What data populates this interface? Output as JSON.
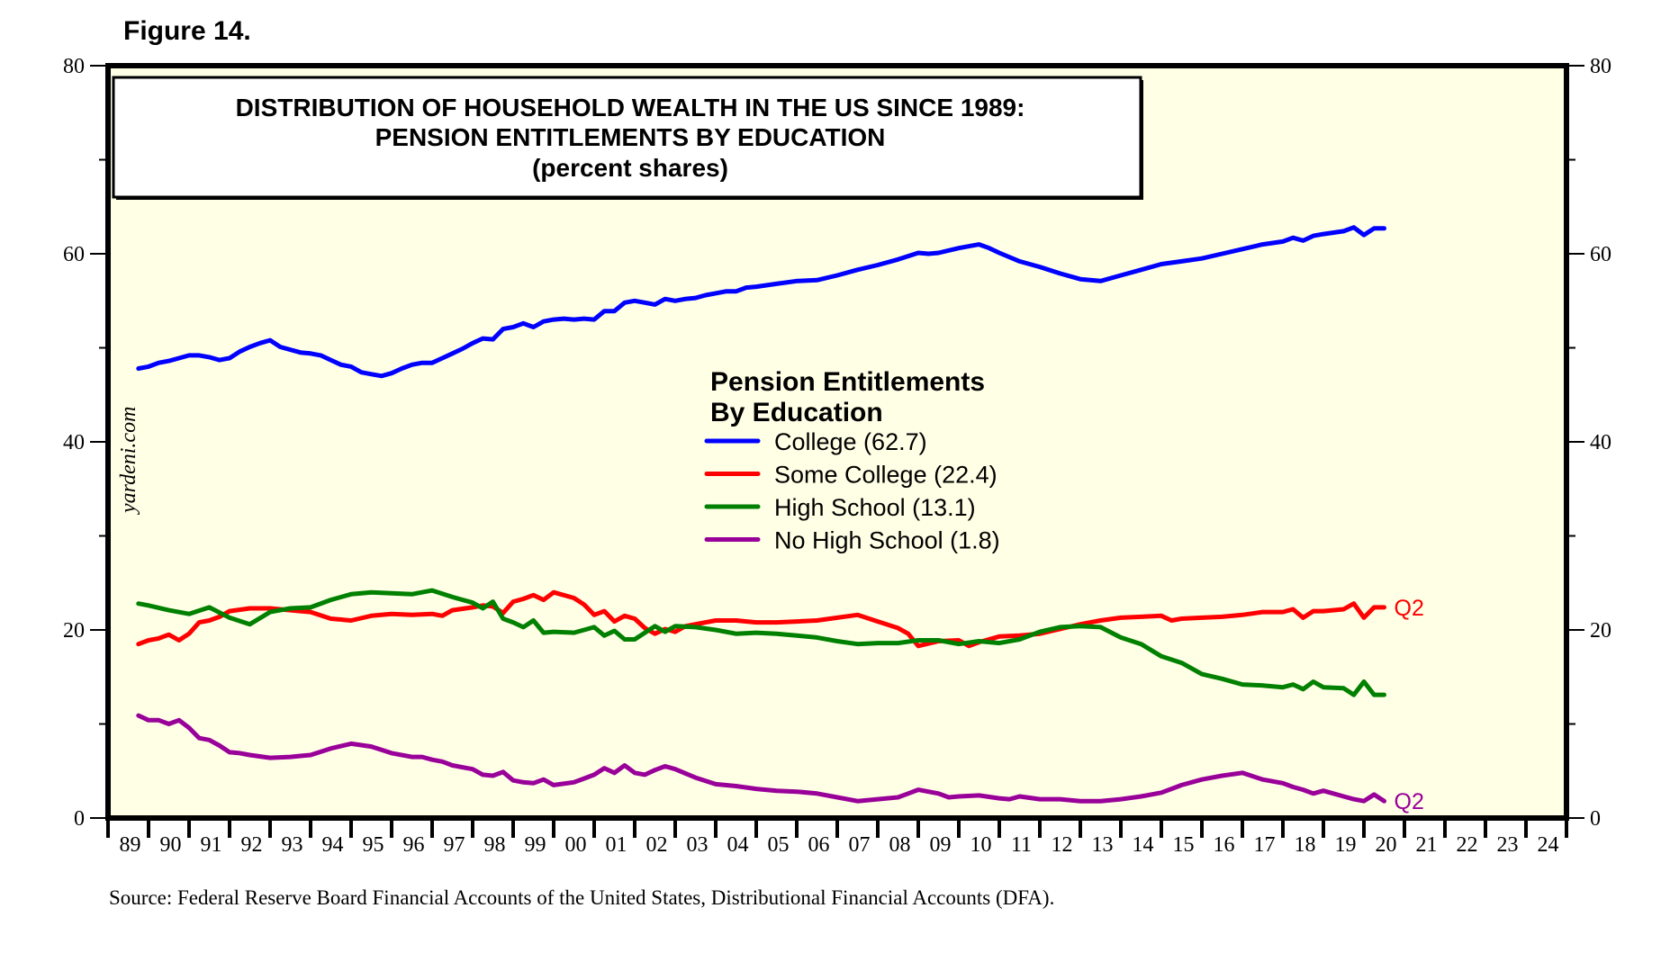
{
  "figure_label": "Figure 14.",
  "source": "Source: Federal Reserve Board Financial Accounts of the United States, Distributional Financial Accounts (DFA).",
  "watermark": "yardeni.com",
  "chart_data": {
    "type": "line",
    "title": [
      "DISTRIBUTION OF HOUSEHOLD WEALTH IN THE US SINCE 1989:",
      "PENSION ENTITLEMENTS BY EDUCATION",
      "(percent shares)"
    ],
    "xlabel": "",
    "ylabel": "",
    "xlim": [
      1989,
      2025
    ],
    "ylim": [
      0,
      80
    ],
    "yticks": [
      0,
      20,
      40,
      60,
      80
    ],
    "ytick_labels": [
      "0",
      "20",
      "40",
      "60",
      "80"
    ],
    "xtick_labels": [
      "89",
      "90",
      "91",
      "92",
      "93",
      "94",
      "95",
      "96",
      "97",
      "98",
      "99",
      "00",
      "01",
      "02",
      "03",
      "04",
      "05",
      "06",
      "07",
      "08",
      "09",
      "10",
      "11",
      "12",
      "13",
      "14",
      "15",
      "16",
      "17",
      "18",
      "19",
      "20",
      "21",
      "22",
      "23",
      "24"
    ],
    "grid": false,
    "background": "#ffffe6",
    "legend": {
      "title": [
        "Pension Entitlements",
        "By Education"
      ],
      "placement": "center"
    },
    "end_labels": [
      {
        "series": "Some College",
        "text": "Q2",
        "color": "#ff0000"
      },
      {
        "series": "No High School",
        "text": "Q2",
        "color": "#990099"
      }
    ],
    "series": [
      {
        "name": "College",
        "legend_label": "College (62.7)",
        "color": "#0000ff",
        "x": [
          1989.75,
          1990.0,
          1990.25,
          1990.5,
          1990.75,
          1991.0,
          1991.25,
          1991.5,
          1991.75,
          1992.0,
          1992.25,
          1992.5,
          1992.75,
          1993.0,
          1993.25,
          1993.5,
          1993.75,
          1994.0,
          1994.25,
          1994.5,
          1994.75,
          1995.0,
          1995.25,
          1995.5,
          1995.75,
          1996.0,
          1996.25,
          1996.5,
          1996.75,
          1997.0,
          1997.25,
          1997.5,
          1997.75,
          1998.0,
          1998.25,
          1998.5,
          1998.75,
          1999.0,
          1999.25,
          1999.5,
          1999.75,
          2000.0,
          2000.25,
          2000.5,
          2000.75,
          2001.0,
          2001.25,
          2001.5,
          2001.75,
          2002.0,
          2002.25,
          2002.5,
          2002.75,
          2003.0,
          2003.25,
          2003.5,
          2003.75,
          2004.0,
          2004.25,
          2004.5,
          2004.75,
          2005.0,
          2005.5,
          2006.0,
          2006.5,
          2007.0,
          2007.5,
          2008.0,
          2008.5,
          2009.0,
          2009.25,
          2009.5,
          2010.0,
          2010.5,
          2010.75,
          2011.0,
          2011.5,
          2012.0,
          2012.5,
          2013.0,
          2013.5,
          2014.0,
          2014.5,
          2015.0,
          2015.5,
          2016.0,
          2016.5,
          2017.0,
          2017.5,
          2018.0,
          2018.25,
          2018.5,
          2018.75,
          2019.0,
          2019.5,
          2019.75,
          2020.0,
          2020.25,
          2020.5
        ],
        "values": [
          47.8,
          48.0,
          48.4,
          48.6,
          48.9,
          49.2,
          49.2,
          49.0,
          48.7,
          48.9,
          49.6,
          50.1,
          50.5,
          50.8,
          50.1,
          49.8,
          49.5,
          49.4,
          49.2,
          48.7,
          48.2,
          48.0,
          47.4,
          47.2,
          47.0,
          47.3,
          47.8,
          48.2,
          48.4,
          48.4,
          48.9,
          49.4,
          49.9,
          50.5,
          51.0,
          50.9,
          52.0,
          52.2,
          52.6,
          52.2,
          52.8,
          53.0,
          53.1,
          53.0,
          53.1,
          53.0,
          53.9,
          53.9,
          54.8,
          55.0,
          54.8,
          54.6,
          55.2,
          55.0,
          55.2,
          55.3,
          55.6,
          55.8,
          56.0,
          56.0,
          56.4,
          56.5,
          56.8,
          57.1,
          57.2,
          57.7,
          58.3,
          58.8,
          59.4,
          60.1,
          60.0,
          60.1,
          60.6,
          61.0,
          60.6,
          60.1,
          59.2,
          58.6,
          57.9,
          57.3,
          57.1,
          57.7,
          58.3,
          58.9,
          59.2,
          59.5,
          60.0,
          60.5,
          61.0,
          61.3,
          61.7,
          61.4,
          61.9,
          62.1,
          62.4,
          62.8,
          62.0,
          62.7,
          62.7
        ],
        "end": 62.7
      },
      {
        "name": "Some College",
        "legend_label": "Some College (22.4)",
        "color": "#ff0000",
        "x": [
          1989.75,
          1990.0,
          1990.25,
          1990.5,
          1990.75,
          1991.0,
          1991.25,
          1991.5,
          1991.75,
          1992.0,
          1992.5,
          1993.0,
          1993.5,
          1994.0,
          1994.5,
          1995.0,
          1995.5,
          1996.0,
          1996.5,
          1997.0,
          1997.25,
          1997.5,
          1998.0,
          1998.25,
          1998.5,
          1998.75,
          1999.0,
          1999.25,
          1999.5,
          1999.75,
          2000.0,
          2000.5,
          2000.75,
          2001.0,
          2001.25,
          2001.5,
          2001.75,
          2002.0,
          2002.25,
          2002.5,
          2002.75,
          2003.0,
          2003.25,
          2003.5,
          2004.0,
          2004.5,
          2005.0,
          2005.5,
          2006.0,
          2006.5,
          2007.0,
          2007.5,
          2008.0,
          2008.5,
          2008.75,
          2009.0,
          2009.5,
          2010.0,
          2010.25,
          2010.5,
          2011.0,
          2011.5,
          2012.0,
          2012.5,
          2013.0,
          2013.5,
          2014.0,
          2014.5,
          2015.0,
          2015.25,
          2015.5,
          2016.0,
          2016.5,
          2017.0,
          2017.5,
          2018.0,
          2018.25,
          2018.5,
          2018.75,
          2019.0,
          2019.5,
          2019.75,
          2020.0,
          2020.25,
          2020.5
        ],
        "values": [
          18.5,
          18.9,
          19.1,
          19.5,
          18.9,
          19.6,
          20.8,
          21.0,
          21.4,
          22.0,
          22.3,
          22.3,
          22.1,
          21.9,
          21.2,
          21.0,
          21.5,
          21.7,
          21.6,
          21.7,
          21.5,
          22.1,
          22.4,
          22.6,
          22.5,
          21.8,
          23.0,
          23.3,
          23.7,
          23.2,
          24.0,
          23.4,
          22.7,
          21.6,
          22.0,
          20.9,
          21.5,
          21.2,
          20.2,
          19.6,
          20.1,
          19.8,
          20.4,
          20.6,
          21.0,
          21.0,
          20.8,
          20.8,
          20.9,
          21.0,
          21.3,
          21.6,
          20.9,
          20.2,
          19.6,
          18.3,
          18.8,
          18.9,
          18.3,
          18.7,
          19.3,
          19.4,
          19.6,
          20.1,
          20.6,
          21.0,
          21.3,
          21.4,
          21.5,
          21.0,
          21.2,
          21.3,
          21.4,
          21.6,
          21.9,
          21.9,
          22.2,
          21.3,
          22.0,
          22.0,
          22.2,
          22.8,
          21.3,
          22.4,
          22.4
        ],
        "end": 22.4
      },
      {
        "name": "High School",
        "legend_label": "High School (13.1)",
        "color": "#008000",
        "x": [
          1989.75,
          1990.0,
          1990.5,
          1991.0,
          1991.5,
          1992.0,
          1992.5,
          1993.0,
          1993.5,
          1994.0,
          1994.5,
          1995.0,
          1995.5,
          1996.0,
          1996.5,
          1997.0,
          1997.5,
          1998.0,
          1998.25,
          1998.5,
          1998.75,
          1999.0,
          1999.25,
          1999.5,
          1999.75,
          2000.0,
          2000.5,
          2001.0,
          2001.25,
          2001.5,
          2001.75,
          2002.0,
          2002.5,
          2002.75,
          2003.0,
          2003.5,
          2004.0,
          2004.5,
          2005.0,
          2005.5,
          2006.0,
          2006.5,
          2007.0,
          2007.5,
          2008.0,
          2008.5,
          2009.0,
          2009.5,
          2010.0,
          2010.5,
          2011.0,
          2011.5,
          2012.0,
          2012.5,
          2013.0,
          2013.5,
          2014.0,
          2014.5,
          2015.0,
          2015.5,
          2016.0,
          2016.5,
          2017.0,
          2017.5,
          2018.0,
          2018.25,
          2018.5,
          2018.75,
          2019.0,
          2019.5,
          2019.75,
          2020.0,
          2020.25,
          2020.5
        ],
        "values": [
          22.8,
          22.6,
          22.1,
          21.7,
          22.4,
          21.3,
          20.6,
          21.9,
          22.3,
          22.4,
          23.2,
          23.8,
          24.0,
          23.9,
          23.8,
          24.2,
          23.5,
          22.9,
          22.3,
          23.0,
          21.2,
          20.8,
          20.3,
          21.0,
          19.7,
          19.8,
          19.7,
          20.3,
          19.4,
          19.9,
          19.0,
          19.0,
          20.4,
          19.8,
          20.4,
          20.3,
          20.0,
          19.6,
          19.7,
          19.6,
          19.4,
          19.2,
          18.8,
          18.5,
          18.6,
          18.6,
          18.9,
          18.9,
          18.5,
          18.8,
          18.6,
          19.0,
          19.8,
          20.3,
          20.4,
          20.3,
          19.2,
          18.5,
          17.2,
          16.5,
          15.3,
          14.8,
          14.2,
          14.1,
          13.9,
          14.2,
          13.7,
          14.5,
          13.9,
          13.8,
          13.1,
          14.5,
          13.1,
          13.1
        ],
        "end": 13.1
      },
      {
        "name": "No High School",
        "legend_label": "No High School (1.8)",
        "color": "#990099",
        "x": [
          1989.75,
          1990.0,
          1990.25,
          1990.5,
          1990.75,
          1991.0,
          1991.25,
          1991.5,
          1991.75,
          1992.0,
          1992.25,
          1992.5,
          1993.0,
          1993.5,
          1993.75,
          1994.0,
          1994.5,
          1995.0,
          1995.5,
          1996.0,
          1996.5,
          1996.75,
          1997.0,
          1997.25,
          1997.5,
          1998.0,
          1998.25,
          1998.5,
          1998.75,
          1999.0,
          1999.25,
          1999.5,
          1999.75,
          2000.0,
          2000.5,
          2000.75,
          2001.0,
          2001.25,
          2001.5,
          2001.75,
          2002.0,
          2002.25,
          2002.5,
          2002.75,
          2003.0,
          2003.5,
          2004.0,
          2004.5,
          2005.0,
          2005.5,
          2006.0,
          2006.5,
          2007.0,
          2007.5,
          2008.0,
          2008.5,
          2008.75,
          2009.0,
          2009.5,
          2009.75,
          2010.0,
          2010.5,
          2011.0,
          2011.25,
          2011.5,
          2012.0,
          2012.5,
          2013.0,
          2013.5,
          2014.0,
          2014.5,
          2015.0,
          2015.25,
          2015.5,
          2016.0,
          2016.5,
          2017.0,
          2017.5,
          2018.0,
          2018.25,
          2018.5,
          2018.75,
          2019.0,
          2019.5,
          2019.75,
          2020.0,
          2020.25,
          2020.5
        ],
        "values": [
          10.9,
          10.4,
          10.4,
          10.0,
          10.4,
          9.6,
          8.5,
          8.3,
          7.7,
          7.0,
          6.9,
          6.7,
          6.4,
          6.5,
          6.6,
          6.7,
          7.4,
          7.9,
          7.6,
          6.9,
          6.5,
          6.5,
          6.2,
          6.0,
          5.6,
          5.2,
          4.6,
          4.5,
          4.9,
          4.0,
          3.8,
          3.7,
          4.1,
          3.5,
          3.8,
          4.2,
          4.6,
          5.3,
          4.8,
          5.6,
          4.8,
          4.6,
          5.1,
          5.5,
          5.2,
          4.3,
          3.6,
          3.4,
          3.1,
          2.9,
          2.8,
          2.6,
          2.2,
          1.8,
          2.0,
          2.2,
          2.6,
          3.0,
          2.6,
          2.2,
          2.3,
          2.4,
          2.1,
          2.0,
          2.3,
          2.0,
          2.0,
          1.8,
          1.8,
          2.0,
          2.3,
          2.7,
          3.1,
          3.5,
          4.1,
          4.5,
          4.8,
          4.1,
          3.7,
          3.3,
          3.0,
          2.6,
          2.9,
          2.3,
          2.0,
          1.8,
          2.5,
          1.8
        ],
        "end": 1.8
      }
    ]
  }
}
